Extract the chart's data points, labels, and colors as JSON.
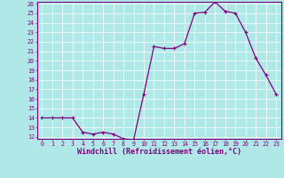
{
  "x": [
    0,
    1,
    2,
    3,
    4,
    5,
    6,
    7,
    8,
    9,
    10,
    11,
    12,
    13,
    14,
    15,
    16,
    17,
    18,
    19,
    20,
    21,
    22,
    23
  ],
  "y": [
    14,
    14,
    14,
    14,
    12.5,
    12.3,
    12.5,
    12.3,
    11.8,
    11.7,
    16.5,
    21.5,
    21.3,
    21.3,
    21.8,
    25.0,
    25.1,
    26.2,
    25.2,
    25.0,
    23.0,
    20.3,
    18.5,
    16.5
  ],
  "line_color": "#800080",
  "marker_color": "#800080",
  "bg_color": "#b0e8e8",
  "grid_color": "#ffffff",
  "xlabel": "Windchill (Refroidissement éolien,°C)",
  "ylim_min": 12,
  "ylim_max": 26,
  "xlim_min": -0.5,
  "xlim_max": 23.5,
  "yticks": [
    12,
    13,
    14,
    15,
    16,
    17,
    18,
    19,
    20,
    21,
    22,
    23,
    24,
    25,
    26
  ],
  "xticks": [
    0,
    1,
    2,
    3,
    4,
    5,
    6,
    7,
    8,
    9,
    10,
    11,
    12,
    13,
    14,
    15,
    16,
    17,
    18,
    19,
    20,
    21,
    22,
    23
  ],
  "tick_color": "#800080",
  "tick_fontsize": 4.8,
  "xlabel_fontsize": 6.0,
  "axis_label_color": "#800080",
  "line_width": 0.9,
  "marker_size": 2.0
}
